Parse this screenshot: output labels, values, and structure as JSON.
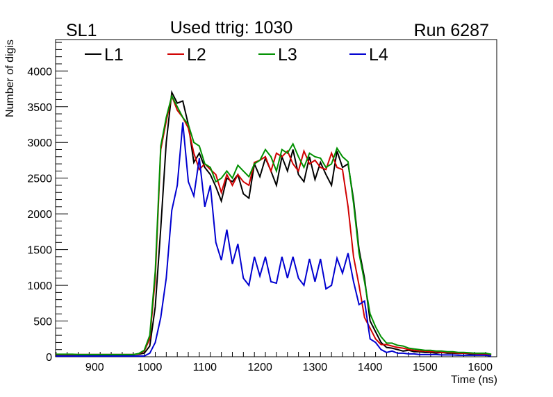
{
  "header": {
    "left": "SL1",
    "center": "Used ttrig: 1030",
    "right": "Run 6287"
  },
  "chart_data": {
    "type": "line",
    "xlabel": "Time (ns)",
    "ylabel": "Number of digis",
    "xlim": [
      829,
      1630
    ],
    "ylim": [
      0,
      4440
    ],
    "grid": false,
    "legend_placement": "top-left",
    "x_ticks": [
      "900",
      "1000",
      "1100",
      "1200",
      "1300",
      "1400",
      "1500",
      "1600"
    ],
    "y_ticks": [
      "0",
      "500",
      "1000",
      "1500",
      "2000",
      "2500",
      "3000",
      "3500",
      "4000"
    ],
    "x_start": 830,
    "x_step": 10,
    "series": [
      {
        "name": "L1",
        "color": "#000000",
        "values": [
          30,
          30,
          30,
          30,
          30,
          30,
          30,
          30,
          30,
          30,
          30,
          30,
          30,
          30,
          30,
          35,
          50,
          150,
          700,
          1800,
          3000,
          3700,
          3550,
          3580,
          3250,
          2720,
          2850,
          2650,
          2550,
          2380,
          2180,
          2500,
          2450,
          2550,
          2280,
          2220,
          2700,
          2520,
          2780,
          2600,
          2400,
          2800,
          2600,
          2900,
          2550,
          2450,
          2800,
          2480,
          2720,
          2550,
          2400,
          2880,
          2650,
          2700,
          2200,
          1500,
          1100,
          500,
          350,
          200,
          130,
          120,
          100,
          80,
          90,
          70,
          70,
          60,
          60,
          50,
          60,
          50,
          50,
          45,
          50,
          40,
          40,
          40,
          40,
          30
        ]
      },
      {
        "name": "L2",
        "color": "#d00000",
        "values": [
          30,
          30,
          30,
          30,
          30,
          30,
          30,
          30,
          30,
          30,
          30,
          30,
          30,
          30,
          30,
          40,
          80,
          250,
          1100,
          2900,
          3300,
          3650,
          3450,
          3350,
          3200,
          2850,
          2620,
          2700,
          2620,
          2550,
          2300,
          2550,
          2400,
          2550,
          2450,
          2400,
          2720,
          2750,
          2800,
          2600,
          2850,
          2800,
          2880,
          2700,
          2600,
          2880,
          2700,
          2750,
          2650,
          2620,
          2850,
          2650,
          2620,
          2100,
          1400,
          1000,
          550,
          400,
          250,
          170,
          170,
          150,
          130,
          120,
          100,
          90,
          80,
          80,
          70,
          70,
          60,
          60,
          55,
          50,
          50,
          50,
          45,
          40,
          40,
          30
        ]
      },
      {
        "name": "L3",
        "color": "#009000",
        "values": [
          35,
          35,
          35,
          35,
          30,
          30,
          30,
          30,
          30,
          30,
          30,
          30,
          30,
          30,
          30,
          45,
          90,
          300,
          1200,
          2950,
          3350,
          3650,
          3500,
          3350,
          3250,
          3000,
          2950,
          2700,
          2650,
          2450,
          2500,
          2600,
          2500,
          2680,
          2600,
          2520,
          2700,
          2750,
          2900,
          2800,
          2600,
          2900,
          2850,
          2980,
          2800,
          2650,
          2850,
          2800,
          2780,
          2650,
          2700,
          2920,
          2800,
          2730,
          2150,
          1450,
          1050,
          600,
          420,
          280,
          190,
          190,
          160,
          150,
          120,
          110,
          100,
          90,
          90,
          80,
          80,
          70,
          70,
          60,
          60,
          55,
          50,
          50,
          50,
          35
        ]
      },
      {
        "name": "L4",
        "color": "#0000d0",
        "values": [
          10,
          10,
          10,
          10,
          10,
          10,
          10,
          10,
          10,
          10,
          10,
          10,
          10,
          10,
          10,
          10,
          10,
          50,
          200,
          550,
          1100,
          2050,
          2400,
          3280,
          2450,
          2250,
          2780,
          2100,
          2400,
          1600,
          1350,
          1780,
          1300,
          1580,
          1100,
          1000,
          1400,
          1130,
          1400,
          1050,
          1030,
          1400,
          1100,
          1400,
          1100,
          1000,
          1370,
          1050,
          1370,
          950,
          1000,
          1380,
          1170,
          1450,
          1050,
          730,
          780,
          250,
          200,
          100,
          60,
          80,
          50,
          50,
          40,
          40,
          30,
          30,
          30,
          30,
          25,
          25,
          25,
          20,
          20,
          20,
          20,
          20,
          20,
          10
        ]
      }
    ]
  }
}
